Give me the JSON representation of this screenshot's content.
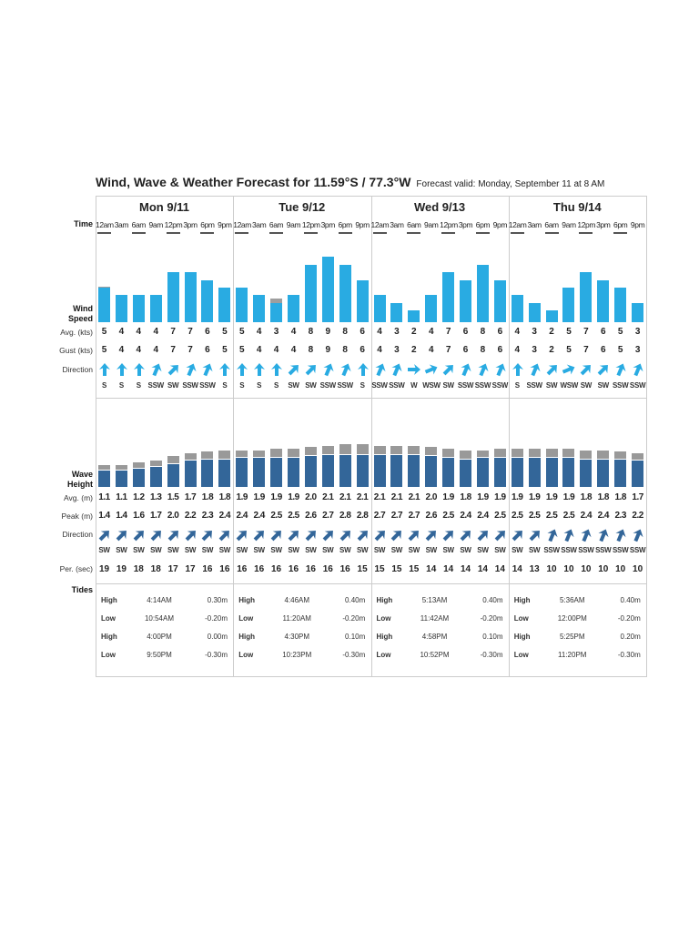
{
  "title": "Wind, Wave & Weather Forecast for 11.59°S / 77.3°W",
  "forecast_valid": "Forecast valid: Monday, September 11 at 8 AM",
  "labels": {
    "time": "Time",
    "wind_speed": "Wind Speed",
    "avg_kts": "Avg. (kts)",
    "gust_kts": "Gust (kts)",
    "direction": "Direction",
    "wave_height": "Wave Height",
    "avg_m": "Avg. (m)",
    "peak_m": "Peak (m)",
    "period": "Per. (sec)",
    "tides": "Tides"
  },
  "colors": {
    "wind": "#29abe2",
    "gust": "#9e9e9e",
    "wave": "#336699",
    "wave_peak": "#999999"
  },
  "hours": [
    "12am",
    "3am",
    "6am",
    "9am",
    "12pm",
    "3pm",
    "6pm",
    "9pm"
  ],
  "days": [
    {
      "label": "Mon 9/11",
      "wind_avg": [
        5,
        4,
        4,
        4,
        7,
        7,
        6,
        5
      ],
      "wind_gust": [
        5,
        4,
        4,
        4,
        7,
        7,
        6,
        5
      ],
      "wind_dir": [
        "S",
        "S",
        "S",
        "SSW",
        "SW",
        "SSW",
        "SSW",
        "S"
      ],
      "wave_avg": [
        "1.1",
        "1.1",
        "1.2",
        "1.3",
        "1.5",
        "1.7",
        "1.8",
        "1.8"
      ],
      "wave_peak": [
        "1.4",
        "1.4",
        "1.6",
        "1.7",
        "2.0",
        "2.2",
        "2.3",
        "2.4"
      ],
      "wave_dir": [
        "SW",
        "SW",
        "SW",
        "SW",
        "SW",
        "SW",
        "SW",
        "SW"
      ],
      "period": [
        19,
        19,
        18,
        18,
        17,
        17,
        16,
        16
      ],
      "tides": [
        {
          "type": "High",
          "time": "4:14AM",
          "height": "0.30m"
        },
        {
          "type": "Low",
          "time": "10:54AM",
          "height": "-0.20m"
        },
        {
          "type": "High",
          "time": "4:00PM",
          "height": "0.00m"
        },
        {
          "type": "Low",
          "time": "9:50PM",
          "height": "-0.30m"
        }
      ]
    },
    {
      "label": "Tue 9/12",
      "wind_avg": [
        5,
        4,
        3,
        4,
        8,
        9,
        8,
        6
      ],
      "wind_gust": [
        5,
        4,
        4,
        4,
        8,
        9,
        8,
        6
      ],
      "wind_dir": [
        "S",
        "S",
        "S",
        "SW",
        "SW",
        "SSW",
        "SSW",
        "S"
      ],
      "wave_avg": [
        "1.9",
        "1.9",
        "1.9",
        "1.9",
        "2.0",
        "2.1",
        "2.1",
        "2.1"
      ],
      "wave_peak": [
        "2.4",
        "2.4",
        "2.5",
        "2.5",
        "2.6",
        "2.7",
        "2.8",
        "2.8"
      ],
      "wave_dir": [
        "SW",
        "SW",
        "SW",
        "SW",
        "SW",
        "SW",
        "SW",
        "SW"
      ],
      "period": [
        16,
        16,
        16,
        16,
        16,
        16,
        16,
        15
      ],
      "tides": [
        {
          "type": "High",
          "time": "4:46AM",
          "height": "0.40m"
        },
        {
          "type": "Low",
          "time": "11:20AM",
          "height": "-0.20m"
        },
        {
          "type": "High",
          "time": "4:30PM",
          "height": "0.10m"
        },
        {
          "type": "Low",
          "time": "10:23PM",
          "height": "-0.30m"
        }
      ]
    },
    {
      "label": "Wed 9/13",
      "wind_avg": [
        4,
        3,
        2,
        4,
        7,
        6,
        8,
        6
      ],
      "wind_gust": [
        4,
        3,
        2,
        4,
        7,
        6,
        8,
        6
      ],
      "wind_dir": [
        "SSW",
        "SSW",
        "W",
        "WSW",
        "SW",
        "SSW",
        "SSW",
        "SSW"
      ],
      "wave_avg": [
        "2.1",
        "2.1",
        "2.1",
        "2.0",
        "1.9",
        "1.8",
        "1.9",
        "1.9"
      ],
      "wave_peak": [
        "2.7",
        "2.7",
        "2.7",
        "2.6",
        "2.5",
        "2.4",
        "2.4",
        "2.5"
      ],
      "wave_dir": [
        "SW",
        "SW",
        "SW",
        "SW",
        "SW",
        "SW",
        "SW",
        "SW"
      ],
      "period": [
        15,
        15,
        15,
        14,
        14,
        14,
        14,
        14
      ],
      "tides": [
        {
          "type": "High",
          "time": "5:13AM",
          "height": "0.40m"
        },
        {
          "type": "Low",
          "time": "11:42AM",
          "height": "-0.20m"
        },
        {
          "type": "High",
          "time": "4:58PM",
          "height": "0.10m"
        },
        {
          "type": "Low",
          "time": "10:52PM",
          "height": "-0.30m"
        }
      ]
    },
    {
      "label": "Thu 9/14",
      "wind_avg": [
        4,
        3,
        2,
        5,
        7,
        6,
        5,
        3
      ],
      "wind_gust": [
        4,
        3,
        2,
        5,
        7,
        6,
        5,
        3
      ],
      "wind_dir": [
        "S",
        "SSW",
        "SW",
        "WSW",
        "SW",
        "SW",
        "SSW",
        "SSW"
      ],
      "wave_avg": [
        "1.9",
        "1.9",
        "1.9",
        "1.9",
        "1.8",
        "1.8",
        "1.8",
        "1.7"
      ],
      "wave_peak": [
        "2.5",
        "2.5",
        "2.5",
        "2.5",
        "2.4",
        "2.4",
        "2.3",
        "2.2"
      ],
      "wave_dir": [
        "SW",
        "SW",
        "SSW",
        "SSW",
        "SSW",
        "SSW",
        "SSW",
        "SSW"
      ],
      "period": [
        14,
        13,
        10,
        10,
        10,
        10,
        10,
        10
      ],
      "tides": [
        {
          "type": "High",
          "time": "5:36AM",
          "height": "0.40m"
        },
        {
          "type": "Low",
          "time": "12:00PM",
          "height": "-0.20m"
        },
        {
          "type": "High",
          "time": "5:25PM",
          "height": "0.20m"
        },
        {
          "type": "Low",
          "time": "11:20PM",
          "height": "-0.30m"
        }
      ]
    }
  ]
}
